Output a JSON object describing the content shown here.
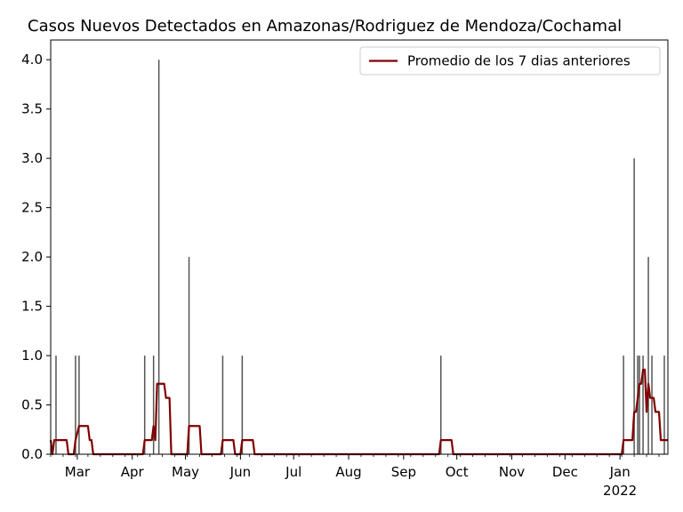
{
  "chart_data": {
    "type": "bar+line",
    "title": "Casos Nuevos Detectados en Amazonas/Rodriguez de Mendoza/Cochamal",
    "xlabel": "",
    "ylabel": "",
    "x_range": [
      "2021-02-14",
      "2022-01-28"
    ],
    "ylim": [
      0,
      4.2
    ],
    "y_ticks": [
      "0.0",
      "0.5",
      "1.0",
      "1.5",
      "2.0",
      "2.5",
      "3.0",
      "3.5",
      "4.0"
    ],
    "x_ticks": [
      {
        "date": "2021-03-01",
        "label": "Mar"
      },
      {
        "date": "2021-04-01",
        "label": "Apr"
      },
      {
        "date": "2021-05-01",
        "label": "May"
      },
      {
        "date": "2021-06-01",
        "label": "Jun"
      },
      {
        "date": "2021-07-01",
        "label": "Jul"
      },
      {
        "date": "2021-08-01",
        "label": "Aug"
      },
      {
        "date": "2021-09-01",
        "label": "Sep"
      },
      {
        "date": "2021-10-01",
        "label": "Oct"
      },
      {
        "date": "2021-11-01",
        "label": "Nov"
      },
      {
        "date": "2021-12-01",
        "label": "Dec"
      },
      {
        "date": "2022-01-01",
        "label": "Jan",
        "sublabel": "2022"
      }
    ],
    "bars": {
      "color": "#555555",
      "points": [
        {
          "date": "2021-02-17",
          "value": 1
        },
        {
          "date": "2021-02-28",
          "value": 1
        },
        {
          "date": "2021-03-02",
          "value": 1
        },
        {
          "date": "2021-04-08",
          "value": 1
        },
        {
          "date": "2021-04-13",
          "value": 1
        },
        {
          "date": "2021-04-16",
          "value": 4
        },
        {
          "date": "2021-05-03",
          "value": 2
        },
        {
          "date": "2021-05-22",
          "value": 1
        },
        {
          "date": "2021-06-02",
          "value": 1
        },
        {
          "date": "2021-09-22",
          "value": 1
        },
        {
          "date": "2022-01-03",
          "value": 1
        },
        {
          "date": "2022-01-09",
          "value": 3
        },
        {
          "date": "2022-01-11",
          "value": 1
        },
        {
          "date": "2022-01-12",
          "value": 1
        },
        {
          "date": "2022-01-14",
          "value": 1
        },
        {
          "date": "2022-01-17",
          "value": 2
        },
        {
          "date": "2022-01-19",
          "value": 1
        },
        {
          "date": "2022-01-26",
          "value": 1
        }
      ]
    },
    "series": [
      {
        "name": "Promedio de los 7 dias anteriores",
        "color": "#800000",
        "points": [
          [
            "2021-02-14",
            0.143
          ],
          [
            "2021-02-15",
            0.0
          ],
          [
            "2021-02-16",
            0.143
          ],
          [
            "2021-02-23",
            0.143
          ],
          [
            "2021-02-24",
            0.0
          ],
          [
            "2021-02-27",
            0.0
          ],
          [
            "2021-02-28",
            0.143
          ],
          [
            "2021-03-02",
            0.286
          ],
          [
            "2021-03-07",
            0.286
          ],
          [
            "2021-03-08",
            0.143
          ],
          [
            "2021-03-09",
            0.143
          ],
          [
            "2021-03-10",
            0.0
          ],
          [
            "2021-04-07",
            0.0
          ],
          [
            "2021-04-08",
            0.143
          ],
          [
            "2021-04-12",
            0.143
          ],
          [
            "2021-04-13",
            0.286
          ],
          [
            "2021-04-14",
            0.143
          ],
          [
            "2021-04-15",
            0.714
          ],
          [
            "2021-04-19",
            0.714
          ],
          [
            "2021-04-20",
            0.571
          ],
          [
            "2021-04-22",
            0.571
          ],
          [
            "2021-04-23",
            0.0
          ],
          [
            "2021-05-02",
            0.0
          ],
          [
            "2021-05-03",
            0.286
          ],
          [
            "2021-05-09",
            0.286
          ],
          [
            "2021-05-10",
            0.0
          ],
          [
            "2021-05-21",
            0.0
          ],
          [
            "2021-05-22",
            0.143
          ],
          [
            "2021-05-28",
            0.143
          ],
          [
            "2021-05-29",
            0.0
          ],
          [
            "2021-06-01",
            0.0
          ],
          [
            "2021-06-02",
            0.143
          ],
          [
            "2021-06-08",
            0.143
          ],
          [
            "2021-06-09",
            0.0
          ],
          [
            "2021-09-21",
            0.0
          ],
          [
            "2021-09-22",
            0.143
          ],
          [
            "2021-09-28",
            0.143
          ],
          [
            "2021-09-29",
            0.0
          ],
          [
            "2022-01-02",
            0.0
          ],
          [
            "2022-01-03",
            0.143
          ],
          [
            "2022-01-08",
            0.143
          ],
          [
            "2022-01-09",
            0.429
          ],
          [
            "2022-01-10",
            0.429
          ],
          [
            "2022-01-11",
            0.571
          ],
          [
            "2022-01-12",
            0.714
          ],
          [
            "2022-01-13",
            0.714
          ],
          [
            "2022-01-14",
            0.857
          ],
          [
            "2022-01-15",
            0.857
          ],
          [
            "2022-01-16",
            0.429
          ],
          [
            "2022-01-17",
            0.714
          ],
          [
            "2022-01-18",
            0.571
          ],
          [
            "2022-01-19",
            0.571
          ],
          [
            "2022-01-20",
            0.571
          ],
          [
            "2022-01-21",
            0.429
          ],
          [
            "2022-01-23",
            0.429
          ],
          [
            "2022-01-24",
            0.143
          ],
          [
            "2022-01-28",
            0.143
          ]
        ]
      }
    ],
    "legend": {
      "position": "top-right"
    },
    "grid": false
  }
}
